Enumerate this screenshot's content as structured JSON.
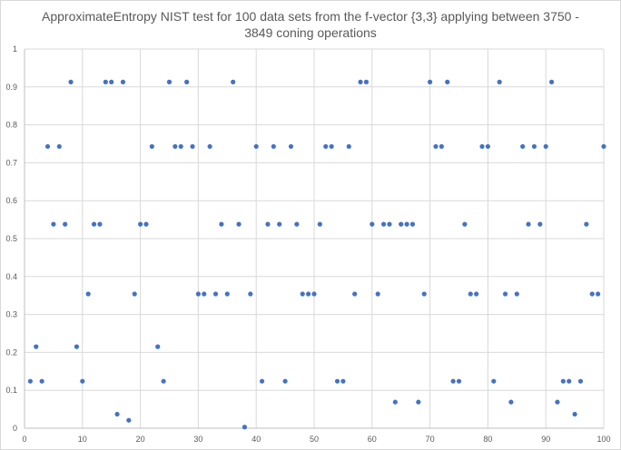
{
  "chart_data": {
    "type": "scatter",
    "title": "ApproximateEntropy NIST test for 100 data sets from the f-vector {3,3} applying between 3750 - 3849 coning operations",
    "xlabel": "",
    "ylabel": "",
    "xlim": [
      0,
      100
    ],
    "ylim": [
      0,
      1
    ],
    "x_ticks": [
      0,
      10,
      20,
      30,
      40,
      50,
      60,
      70,
      80,
      90,
      100
    ],
    "y_ticks": [
      "0",
      "0.1",
      "0.2",
      "0.3",
      "0.4",
      "0.5",
      "0.6",
      "0.7",
      "0.8",
      "0.9",
      "1"
    ],
    "grid": "vertical and horizontal major gridlines",
    "legend": "none",
    "marker_color": "#4472c4",
    "series": [
      {
        "x": [
          1,
          2,
          3,
          4,
          5,
          6,
          7,
          8,
          9,
          10,
          11,
          12,
          13,
          14,
          15,
          16,
          17,
          18,
          19,
          20,
          21,
          22,
          23,
          24,
          25,
          26,
          27,
          28,
          29,
          30,
          31,
          32,
          33,
          34,
          35,
          36,
          37,
          38,
          39,
          40,
          41,
          42,
          43,
          44,
          45,
          46,
          47,
          48,
          49,
          50,
          51,
          52,
          53,
          54,
          55,
          56,
          57,
          58,
          59,
          60,
          61,
          62,
          63,
          64,
          65,
          66,
          67,
          68,
          69,
          70,
          71,
          72,
          73,
          74,
          75,
          76,
          77,
          78,
          79,
          80,
          81,
          82,
          83,
          84,
          85,
          86,
          87,
          88,
          89,
          90,
          91,
          92,
          93,
          94,
          95,
          96,
          97,
          98,
          99,
          100
        ],
        "y": [
          0.124,
          0.215,
          0.124,
          0.743,
          0.538,
          0.743,
          0.538,
          0.913,
          0.215,
          0.124,
          0.354,
          0.538,
          0.538,
          0.913,
          0.913,
          0.037,
          0.913,
          0.021,
          0.354,
          0.538,
          0.538,
          0.743,
          0.215,
          0.124,
          0.913,
          0.743,
          0.743,
          0.913,
          0.743,
          0.354,
          0.354,
          0.743,
          0.354,
          0.538,
          0.354,
          0.913,
          0.538,
          0.003,
          0.354,
          0.743,
          0.124,
          0.538,
          0.743,
          0.538,
          0.124,
          0.743,
          0.538,
          0.354,
          0.354,
          0.354,
          0.538,
          0.743,
          0.743,
          0.124,
          0.124,
          0.743,
          0.354,
          0.913,
          0.913,
          0.538,
          0.354,
          0.538,
          0.538,
          0.069,
          0.538,
          0.538,
          0.538,
          0.069,
          0.354,
          0.913,
          0.743,
          0.743,
          0.913,
          0.124,
          0.124,
          0.538,
          0.354,
          0.354,
          0.743,
          0.743,
          0.124,
          0.913,
          0.354,
          0.069,
          0.354,
          0.743,
          0.538,
          0.743,
          0.538,
          0.743,
          0.913,
          0.069,
          0.124,
          0.124,
          0.037,
          0.124,
          0.538,
          0.354,
          0.354,
          0.743
        ]
      }
    ]
  }
}
